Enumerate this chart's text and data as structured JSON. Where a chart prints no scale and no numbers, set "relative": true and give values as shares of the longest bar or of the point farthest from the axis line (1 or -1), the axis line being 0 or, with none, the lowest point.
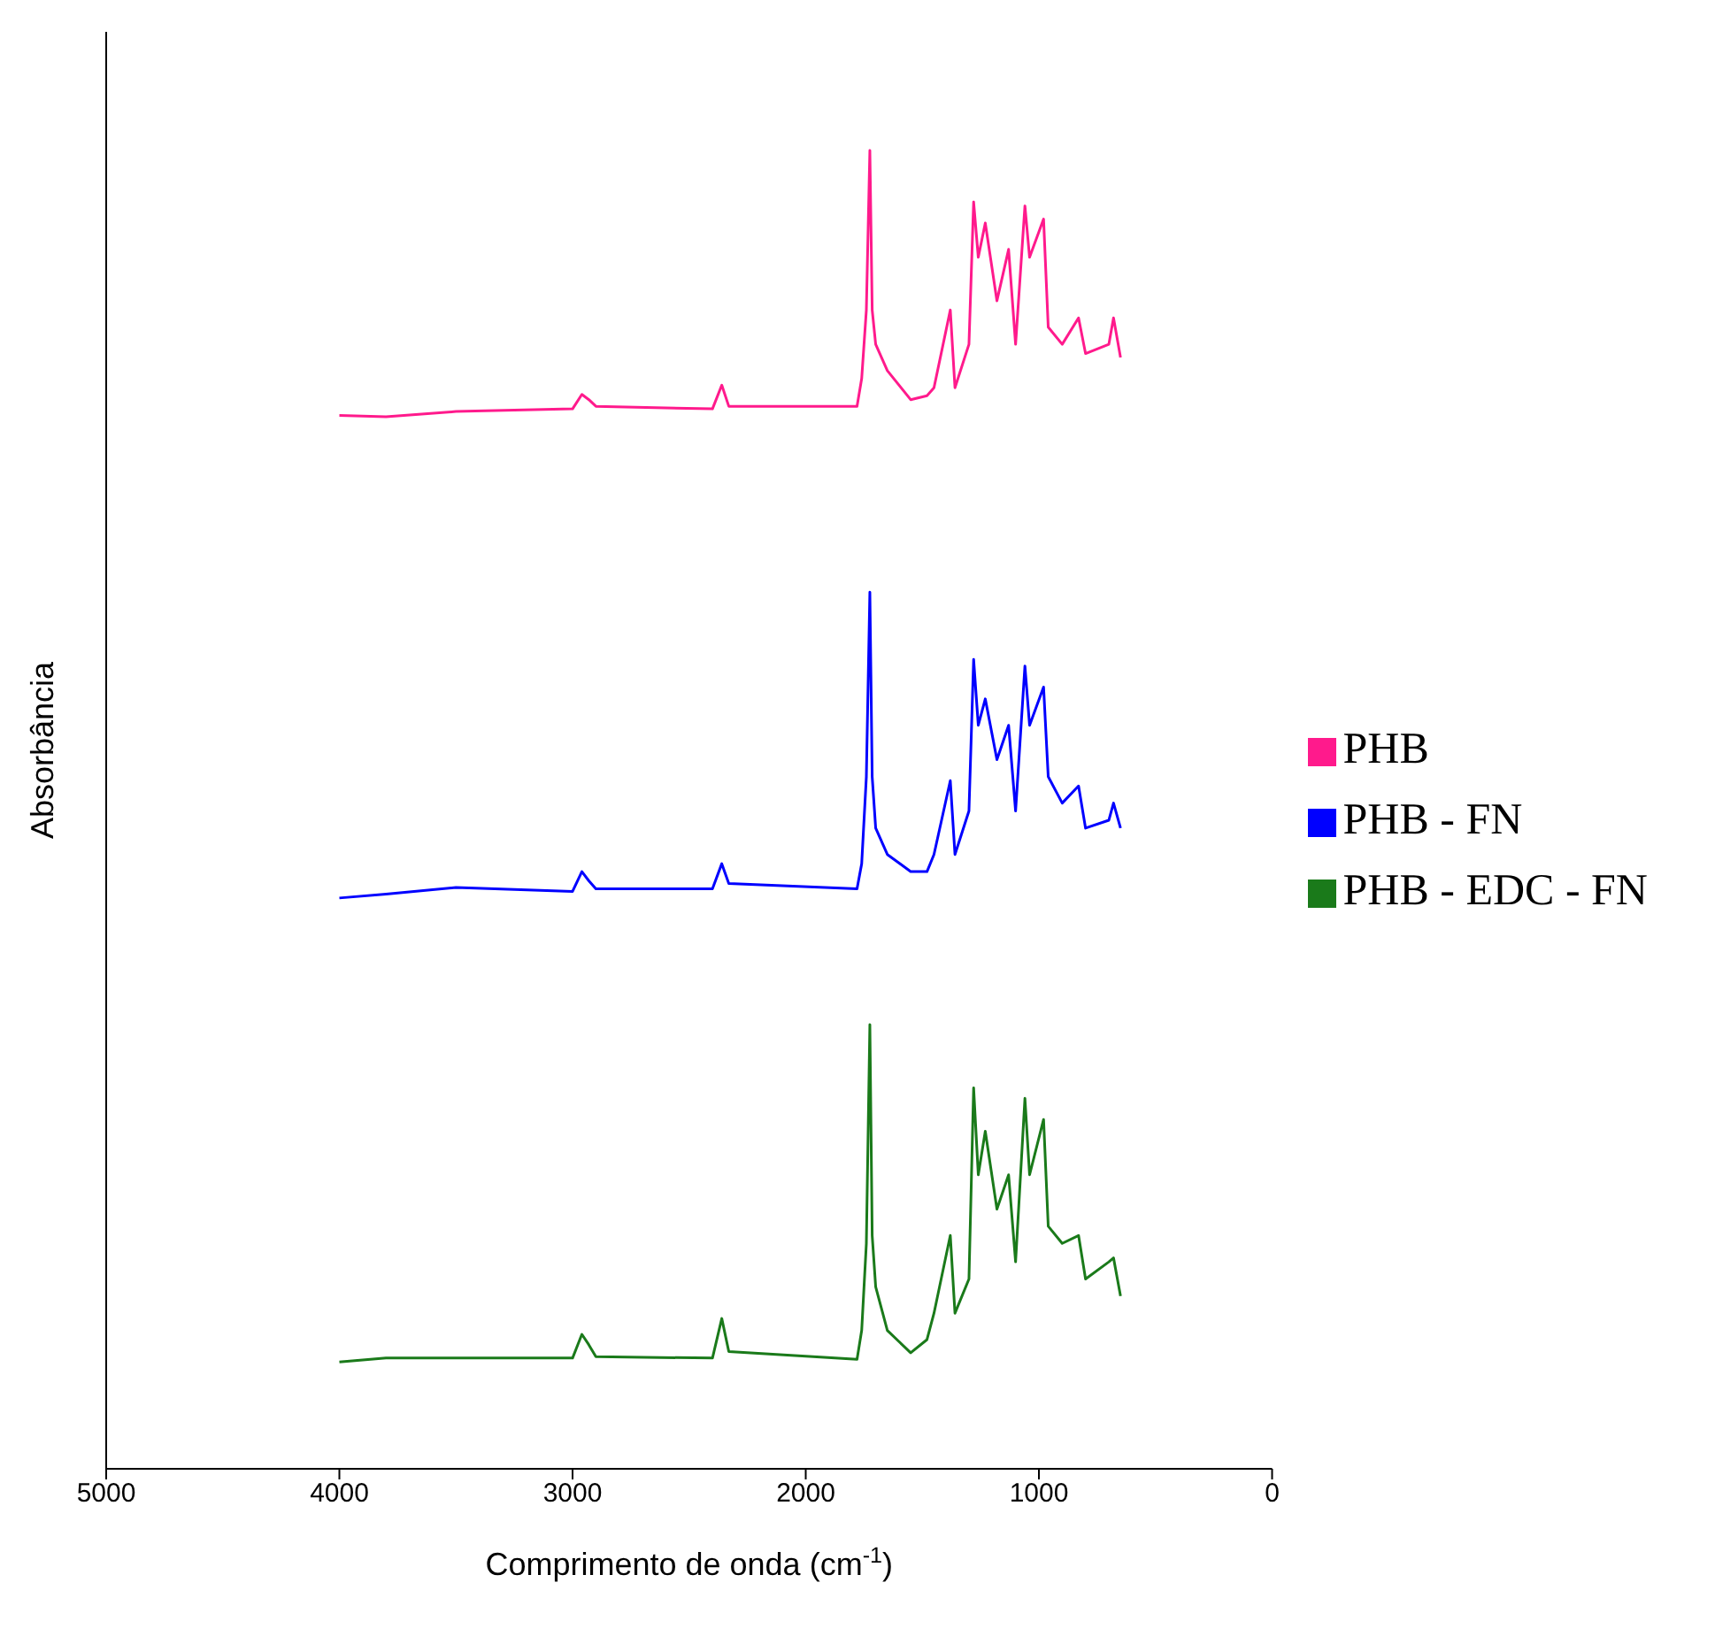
{
  "chart_data": {
    "type": "line",
    "xlabel": "Comprimento de onda (cm$^{-1}$)",
    "ylabel": "Absorbância",
    "relative": true,
    "tick_labels": "x",
    "legend": "right",
    "marker": "none",
    "grid": false,
    "xlim": [
      5000,
      0
    ],
    "xticks": [
      5000,
      4000,
      3000,
      2000,
      1000,
      0
    ],
    "x": [
      4000,
      3800,
      3500,
      3000,
      2960,
      2930,
      2900,
      2400,
      2360,
      2330,
      1780,
      1760,
      1740,
      1725,
      1715,
      1700,
      1650,
      1550,
      1480,
      1450,
      1380,
      1360,
      1300,
      1280,
      1260,
      1230,
      1180,
      1130,
      1100,
      1060,
      1040,
      980,
      960,
      900,
      830,
      800,
      700,
      680,
      650
    ],
    "series": [
      {
        "name": "PHB",
        "color": "#ff1a8c",
        "values": [
          0.799,
          0.798,
          0.802,
          0.804,
          0.815,
          0.811,
          0.806,
          0.804,
          0.822,
          0.806,
          0.806,
          0.827,
          0.879,
          1.0,
          0.879,
          0.853,
          0.833,
          0.811,
          0.814,
          0.82,
          0.879,
          0.82,
          0.853,
          0.961,
          0.919,
          0.945,
          0.886,
          0.925,
          0.853,
          0.958,
          0.919,
          0.948,
          0.866,
          0.853,
          0.873,
          0.846,
          0.853,
          0.873,
          0.843
        ]
      },
      {
        "name": "PHB - FN",
        "color": "#0000ff",
        "values": [
          0.433,
          0.436,
          0.441,
          0.438,
          0.453,
          0.446,
          0.44,
          0.44,
          0.459,
          0.444,
          0.44,
          0.459,
          0.525,
          0.665,
          0.525,
          0.486,
          0.466,
          0.453,
          0.453,
          0.466,
          0.522,
          0.466,
          0.499,
          0.614,
          0.564,
          0.584,
          0.538,
          0.564,
          0.499,
          0.609,
          0.564,
          0.593,
          0.525,
          0.505,
          0.518,
          0.486,
          0.492,
          0.505,
          0.486
        ]
      },
      {
        "name": "PHB - EDC - FN",
        "color": "#1a7a1a",
        "values": [
          0.081,
          0.084,
          0.084,
          0.084,
          0.102,
          0.094,
          0.085,
          0.084,
          0.114,
          0.089,
          0.083,
          0.105,
          0.171,
          0.337,
          0.177,
          0.138,
          0.105,
          0.088,
          0.098,
          0.118,
          0.177,
          0.118,
          0.144,
          0.289,
          0.223,
          0.256,
          0.197,
          0.223,
          0.157,
          0.281,
          0.223,
          0.265,
          0.184,
          0.171,
          0.177,
          0.144,
          0.157,
          0.16,
          0.131
        ]
      }
    ]
  }
}
